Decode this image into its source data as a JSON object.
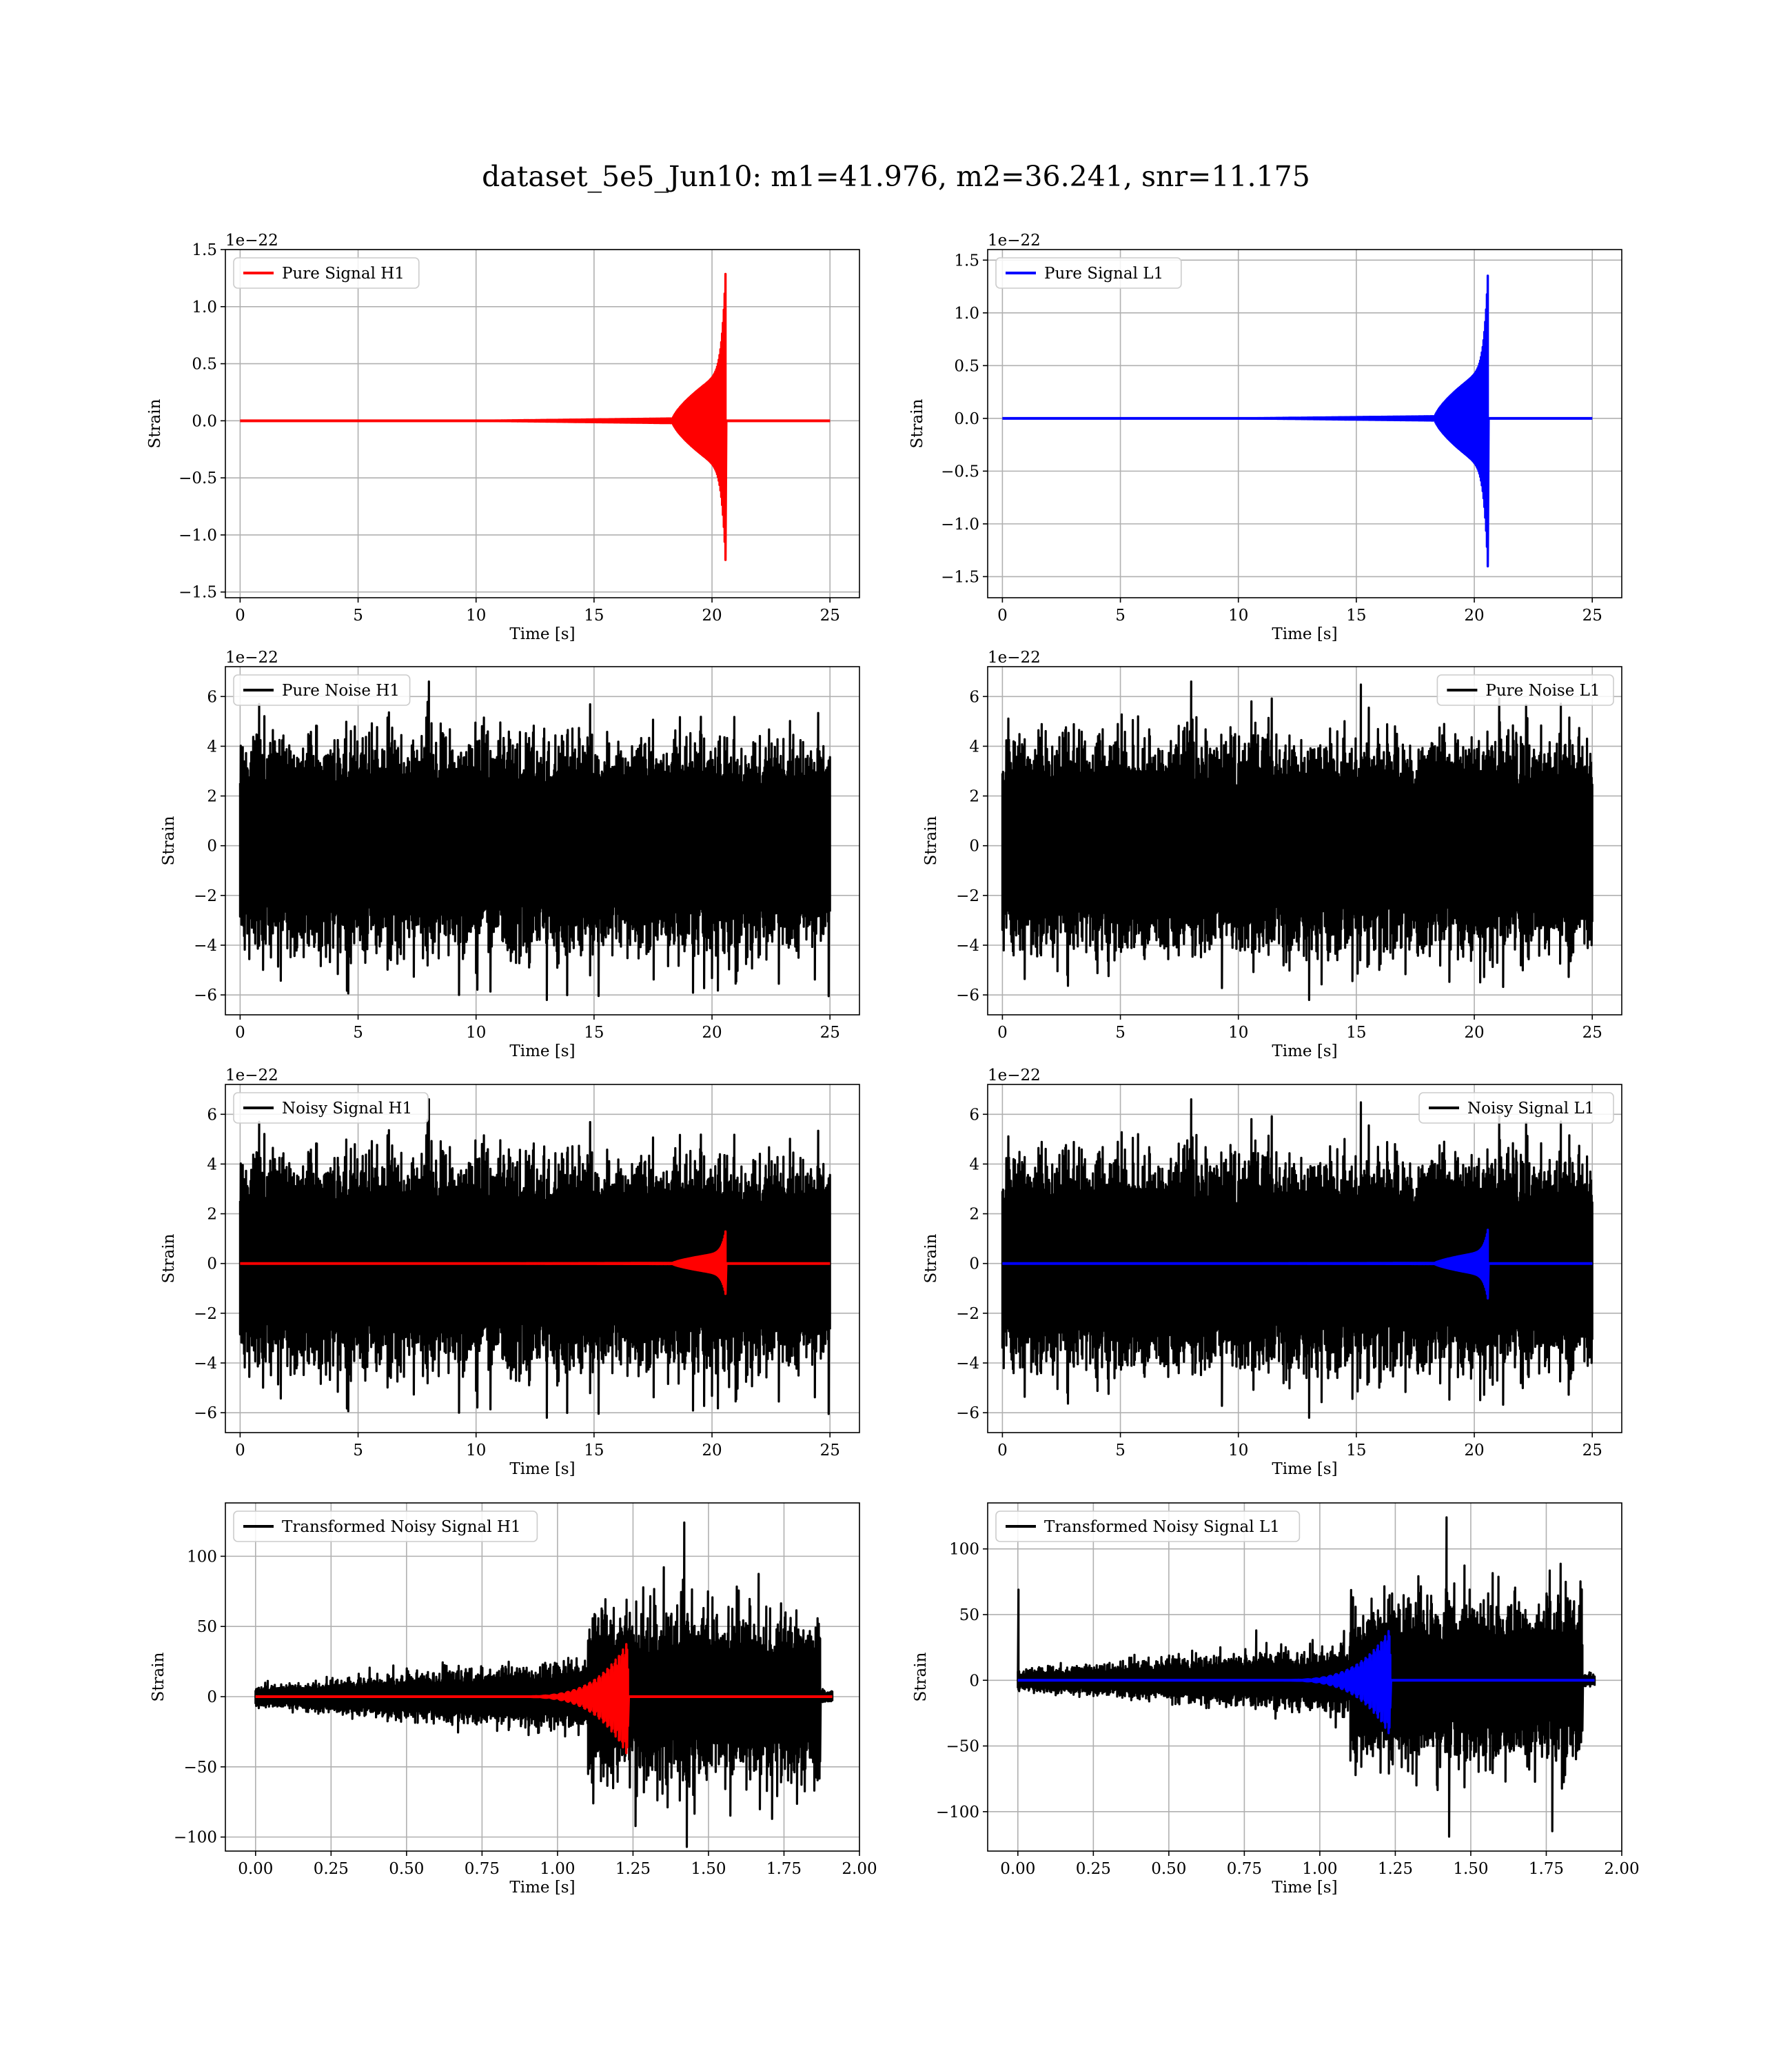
{
  "figure": {
    "title": "dataset_5e5_Jun10: m1=41.976, m2=36.241, snr=11.175"
  },
  "colors": {
    "red": "#ff0000",
    "blue": "#0000ff",
    "black": "#000000",
    "grid": "#b0b0b0"
  },
  "chart_data": [
    {
      "type": "line",
      "legend": "Pure Signal H1",
      "legend_loc": "upper-left",
      "xlabel": "Time [s]",
      "ylabel": "Strain",
      "offset_text": "1e−22",
      "xlim": [
        -0.625,
        26.25
      ],
      "ylim": [
        -1.55,
        1.5
      ],
      "xticks": [
        0,
        5,
        10,
        15,
        20,
        25
      ],
      "xtick_labels": [
        "0",
        "5",
        "10",
        "15",
        "20",
        "25"
      ],
      "yticks": [
        -1.5,
        -1.0,
        -0.5,
        0.0,
        0.5,
        1.0,
        1.5
      ],
      "ytick_labels": [
        "−1.5",
        "−1.0",
        "−0.5",
        "0.0",
        "0.5",
        "1.0",
        "1.5"
      ],
      "grid": true,
      "series": [
        {
          "kind": "chirp",
          "color": "red",
          "t_end": 25,
          "t_merge": 20.6,
          "t_start": 18.3,
          "amp_early": 0.45,
          "amp_peak": 1.45,
          "amp_peak_neg": -1.37
        }
      ]
    },
    {
      "type": "line",
      "legend": "Pure Signal L1",
      "legend_loc": "upper-left",
      "xlabel": "Time [s]",
      "ylabel": "Strain",
      "offset_text": "1e−22",
      "xlim": [
        -0.625,
        26.25
      ],
      "ylim": [
        -1.7,
        1.6
      ],
      "xticks": [
        0,
        5,
        10,
        15,
        20,
        25
      ],
      "xtick_labels": [
        "0",
        "5",
        "10",
        "15",
        "20",
        "25"
      ],
      "yticks": [
        -1.5,
        -1.0,
        -0.5,
        0.0,
        0.5,
        1.0,
        1.5
      ],
      "ytick_labels": [
        "−1.5",
        "−1.0",
        "−0.5",
        "0.0",
        "0.5",
        "1.0",
        "1.5"
      ],
      "grid": true,
      "series": [
        {
          "kind": "chirp",
          "color": "blue",
          "t_end": 25,
          "t_merge": 20.6,
          "t_start": 18.3,
          "amp_early": 0.5,
          "amp_peak": 1.52,
          "amp_peak_neg": -1.58
        }
      ]
    },
    {
      "type": "line",
      "legend": "Pure Noise H1",
      "legend_loc": "upper-left",
      "xlabel": "Time [s]",
      "ylabel": "Strain",
      "offset_text": "1e−22",
      "xlim": [
        -0.625,
        26.25
      ],
      "ylim": [
        -6.8,
        7.2
      ],
      "xticks": [
        0,
        5,
        10,
        15,
        20,
        25
      ],
      "xtick_labels": [
        "0",
        "5",
        "10",
        "15",
        "20",
        "25"
      ],
      "yticks": [
        -6,
        -4,
        -2,
        0,
        2,
        4,
        6
      ],
      "ytick_labels": [
        "−6",
        "−4",
        "−2",
        "0",
        "2",
        "4",
        "6"
      ],
      "grid": true,
      "series": [
        {
          "kind": "noise",
          "color": "black",
          "t_end": 25,
          "sigma": 1.15,
          "max": 6.6,
          "min": -6.2,
          "seed": 11
        }
      ]
    },
    {
      "type": "line",
      "legend": "Pure Noise L1",
      "legend_loc": "upper-right",
      "xlabel": "Time [s]",
      "ylabel": "Strain",
      "offset_text": "1e−22",
      "xlim": [
        -0.625,
        26.25
      ],
      "ylim": [
        -6.8,
        7.2
      ],
      "xticks": [
        0,
        5,
        10,
        15,
        20,
        25
      ],
      "xtick_labels": [
        "0",
        "5",
        "10",
        "15",
        "20",
        "25"
      ],
      "yticks": [
        -6,
        -4,
        -2,
        0,
        2,
        4,
        6
      ],
      "ytick_labels": [
        "−6",
        "−4",
        "−2",
        "0",
        "2",
        "4",
        "6"
      ],
      "grid": true,
      "series": [
        {
          "kind": "noise",
          "color": "black",
          "t_end": 25,
          "sigma": 1.15,
          "max": 6.6,
          "min": -6.2,
          "seed": 23
        }
      ]
    },
    {
      "type": "line",
      "legend": "Noisy Signal H1",
      "legend_loc": "upper-left",
      "xlabel": "Time [s]",
      "ylabel": "Strain",
      "offset_text": "1e−22",
      "xlim": [
        -0.625,
        26.25
      ],
      "ylim": [
        -6.8,
        7.2
      ],
      "xticks": [
        0,
        5,
        10,
        15,
        20,
        25
      ],
      "xtick_labels": [
        "0",
        "5",
        "10",
        "15",
        "20",
        "25"
      ],
      "yticks": [
        -6,
        -4,
        -2,
        0,
        2,
        4,
        6
      ],
      "ytick_labels": [
        "−6",
        "−4",
        "−2",
        "0",
        "2",
        "4",
        "6"
      ],
      "grid": true,
      "series": [
        {
          "kind": "noise",
          "color": "black",
          "t_end": 25,
          "sigma": 1.15,
          "max": 6.6,
          "min": -6.2,
          "seed": 11
        },
        {
          "kind": "chirp",
          "color": "red",
          "t_end": 25,
          "t_merge": 20.6,
          "t_start": 18.3,
          "amp_early": 0.45,
          "amp_peak": 1.45,
          "amp_peak_neg": -1.37
        }
      ]
    },
    {
      "type": "line",
      "legend": "Noisy Signal L1",
      "legend_loc": "upper-right",
      "xlabel": "Time [s]",
      "ylabel": "Strain",
      "offset_text": "1e−22",
      "xlim": [
        -0.625,
        26.25
      ],
      "ylim": [
        -6.8,
        7.2
      ],
      "xticks": [
        0,
        5,
        10,
        15,
        20,
        25
      ],
      "xtick_labels": [
        "0",
        "5",
        "10",
        "15",
        "20",
        "25"
      ],
      "yticks": [
        -6,
        -4,
        -2,
        0,
        2,
        4,
        6
      ],
      "ytick_labels": [
        "−6",
        "−4",
        "−2",
        "0",
        "2",
        "4",
        "6"
      ],
      "grid": true,
      "series": [
        {
          "kind": "noise",
          "color": "black",
          "t_end": 25,
          "sigma": 1.15,
          "max": 6.6,
          "min": -6.2,
          "seed": 23
        },
        {
          "kind": "chirp",
          "color": "blue",
          "t_end": 25,
          "t_merge": 20.6,
          "t_start": 18.3,
          "amp_early": 0.5,
          "amp_peak": 1.52,
          "amp_peak_neg": -1.58
        }
      ]
    },
    {
      "type": "line",
      "legend": "Transformed Noisy Signal H1",
      "legend_loc": "upper-left",
      "xlabel": "Time [s]",
      "ylabel": "Strain",
      "offset_text": "",
      "xlim": [
        -0.1,
        2.0
      ],
      "ylim": [
        -110,
        138
      ],
      "xticks": [
        0.0,
        0.25,
        0.5,
        0.75,
        1.0,
        1.25,
        1.5,
        1.75,
        2.0
      ],
      "xtick_labels": [
        "0.00",
        "0.25",
        "0.50",
        "0.75",
        "1.00",
        "1.25",
        "1.50",
        "1.75",
        "2.00"
      ],
      "yticks": [
        -100,
        -50,
        0,
        50,
        100
      ],
      "ytick_labels": [
        "−100",
        "−50",
        "0",
        "50",
        "100"
      ],
      "grid": true,
      "series": [
        {
          "kind": "whitened_noise",
          "color": "black",
          "t_end": 1.91,
          "t_jump": 1.1,
          "t_cut": 1.87,
          "amp_low": 5,
          "amp_high": 38,
          "max": 124,
          "min": -107,
          "seed": 31,
          "spike_start": 0
        },
        {
          "kind": "whitened_chirp",
          "color": "red",
          "t_end": 1.91,
          "t_merge": 1.235,
          "t_start": 0.8,
          "amp_peak": 40,
          "amp_peak_neg": -43
        }
      ]
    },
    {
      "type": "line",
      "legend": "Transformed Noisy Signal L1",
      "legend_loc": "upper-left",
      "xlabel": "Time [s]",
      "ylabel": "Strain",
      "offset_text": "",
      "xlim": [
        -0.1,
        2.0
      ],
      "ylim": [
        -130,
        135
      ],
      "xticks": [
        0.0,
        0.25,
        0.5,
        0.75,
        1.0,
        1.25,
        1.5,
        1.75,
        2.0
      ],
      "xtick_labels": [
        "0.00",
        "0.25",
        "0.50",
        "0.75",
        "1.00",
        "1.25",
        "1.50",
        "1.75",
        "2.00"
      ],
      "yticks": [
        -100,
        -50,
        0,
        50,
        100
      ],
      "ytick_labels": [
        "−100",
        "−50",
        "0",
        "50",
        "100"
      ],
      "grid": true,
      "series": [
        {
          "kind": "whitened_noise",
          "color": "black",
          "t_end": 1.91,
          "t_jump": 1.1,
          "t_cut": 1.87,
          "amp_low": 5,
          "amp_high": 38,
          "max": 124,
          "min": -119,
          "seed": 47,
          "spike_start": 69
        },
        {
          "kind": "whitened_chirp",
          "color": "blue",
          "t_end": 1.91,
          "t_merge": 1.235,
          "t_start": 0.8,
          "amp_peak": 40,
          "amp_peak_neg": -43
        }
      ]
    }
  ]
}
